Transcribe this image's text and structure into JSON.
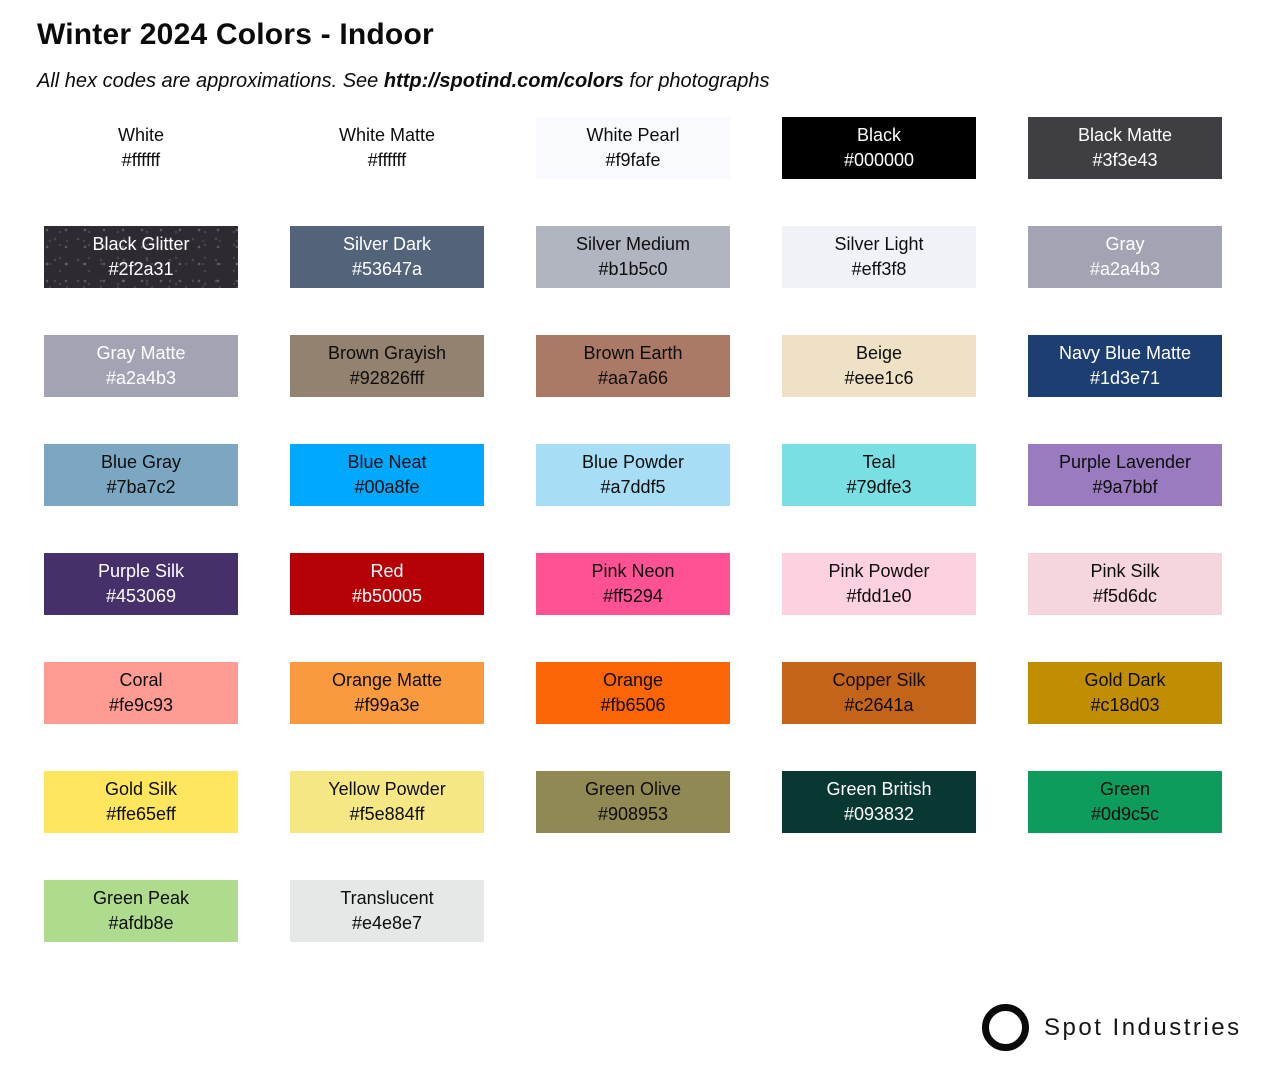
{
  "header": {
    "title": "Winter 2024 Colors - Indoor",
    "subtitle": {
      "prefix": "All hex codes are approximations. See ",
      "link": "http://spotind.com/colors",
      "suffix": " for photographs"
    }
  },
  "palette": {
    "columns": 5,
    "swatches": [
      {
        "name": "White",
        "hex": "#ffffff",
        "bg": "#ffffff",
        "text": "#0d0d0d"
      },
      {
        "name": "White Matte",
        "hex": "#ffffff",
        "bg": "#ffffff",
        "text": "#0d0d0d"
      },
      {
        "name": "White Pearl",
        "hex": "#f9fafe",
        "bg": "#f9fafe",
        "text": "#0d0d0d"
      },
      {
        "name": "Black",
        "hex": "#000000",
        "bg": "#000000",
        "text": "#ffffff"
      },
      {
        "name": "Black Matte",
        "hex": "#3f3e43",
        "bg": "#3f3e43",
        "text": "#ffffff"
      },
      {
        "name": "Black Glitter",
        "hex": "#2f2a31",
        "bg": "#2f2a31",
        "text": "#ffffff",
        "texture": "glitter"
      },
      {
        "name": "Silver Dark",
        "hex": "#53647a",
        "bg": "#53647a",
        "text": "#ffffff"
      },
      {
        "name": "Silver Medium",
        "hex": "#b1b5c0",
        "bg": "#b1b5c0",
        "text": "#0d0d0d"
      },
      {
        "name": "Silver Light",
        "hex": "#eff3f8",
        "bg": "#eff3f8",
        "text": "#0d0d0d"
      },
      {
        "name": "Gray",
        "hex": "#a2a4b3",
        "bg": "#a2a4b3",
        "text": "#ffffff"
      },
      {
        "name": "Gray Matte",
        "hex": "#a2a4b3",
        "bg": "#a2a4b3",
        "text": "#ffffff"
      },
      {
        "name": "Brown Grayish",
        "hex": "#92826fff",
        "bg": "#92826f",
        "text": "#0d0d0d"
      },
      {
        "name": "Brown Earth",
        "hex": "#aa7a66",
        "bg": "#aa7a66",
        "text": "#0d0d0d"
      },
      {
        "name": "Beige",
        "hex": "#eee1c6",
        "bg": "#eee1c6",
        "text": "#0d0d0d"
      },
      {
        "name": "Navy Blue Matte",
        "hex": "#1d3e71",
        "bg": "#1d3e71",
        "text": "#ffffff"
      },
      {
        "name": "Blue Gray",
        "hex": "#7ba7c2",
        "bg": "#7ba7c2",
        "text": "#0d0d0d"
      },
      {
        "name": "Blue Neat",
        "hex": "#00a8fe",
        "bg": "#00a8fe",
        "text": "#0d0d0d"
      },
      {
        "name": "Blue Powder",
        "hex": "#a7ddf5",
        "bg": "#a7ddf5",
        "text": "#0d0d0d"
      },
      {
        "name": "Teal",
        "hex": "#79dfe3",
        "bg": "#79dfe3",
        "text": "#0d0d0d"
      },
      {
        "name": "Purple Lavender",
        "hex": "#9a7bbf",
        "bg": "#9a7bbf",
        "text": "#0d0d0d"
      },
      {
        "name": "Purple Silk",
        "hex": "#453069",
        "bg": "#453069",
        "text": "#ffffff"
      },
      {
        "name": "Red",
        "hex": "#b50005",
        "bg": "#b50005",
        "text": "#ffffff"
      },
      {
        "name": "Pink Neon",
        "hex": "#ff5294",
        "bg": "#ff5294",
        "text": "#0d0d0d"
      },
      {
        "name": "Pink Powder",
        "hex": "#fdd1e0",
        "bg": "#fdd1e0",
        "text": "#0d0d0d"
      },
      {
        "name": "Pink Silk",
        "hex": "#f5d6dc",
        "bg": "#f5d6dc",
        "text": "#0d0d0d"
      },
      {
        "name": "Coral",
        "hex": "#fe9c93",
        "bg": "#fe9c93",
        "text": "#0d0d0d"
      },
      {
        "name": "Orange Matte",
        "hex": "#f99a3e",
        "bg": "#f99a3e",
        "text": "#0d0d0d"
      },
      {
        "name": "Orange",
        "hex": "#fb6506",
        "bg": "#fb6506",
        "text": "#0d0d0d"
      },
      {
        "name": "Copper Silk",
        "hex": "#c2641a",
        "bg": "#c2641a",
        "text": "#0d0d0d"
      },
      {
        "name": "Gold Dark",
        "hex": "#c18d03",
        "bg": "#c18d03",
        "text": "#0d0d0d"
      },
      {
        "name": "Gold Silk",
        "hex": "#ffe65eff",
        "bg": "#ffe65e",
        "text": "#0d0d0d"
      },
      {
        "name": "Yellow Powder",
        "hex": "#f5e884ff",
        "bg": "#f5e884",
        "text": "#0d0d0d"
      },
      {
        "name": "Green Olive",
        "hex": "#908953",
        "bg": "#908953",
        "text": "#0d0d0d"
      },
      {
        "name": "Green British",
        "hex": "#093832",
        "bg": "#093832",
        "text": "#ffffff"
      },
      {
        "name": "Green",
        "hex": "#0d9c5c",
        "bg": "#0d9c5c",
        "text": "#0d0d0d"
      },
      {
        "name": "Green Peak",
        "hex": "#afdb8e",
        "bg": "#afdb8e",
        "text": "#0d0d0d"
      },
      {
        "name": "Translucent",
        "hex": "#e4e8e7",
        "bg": "#e4e8e7",
        "text": "#0d0d0d"
      }
    ]
  },
  "footer": {
    "brand": "Spot Industries",
    "logo_icon": "circle-outline-icon",
    "logo_color": "#0a0a0a"
  }
}
